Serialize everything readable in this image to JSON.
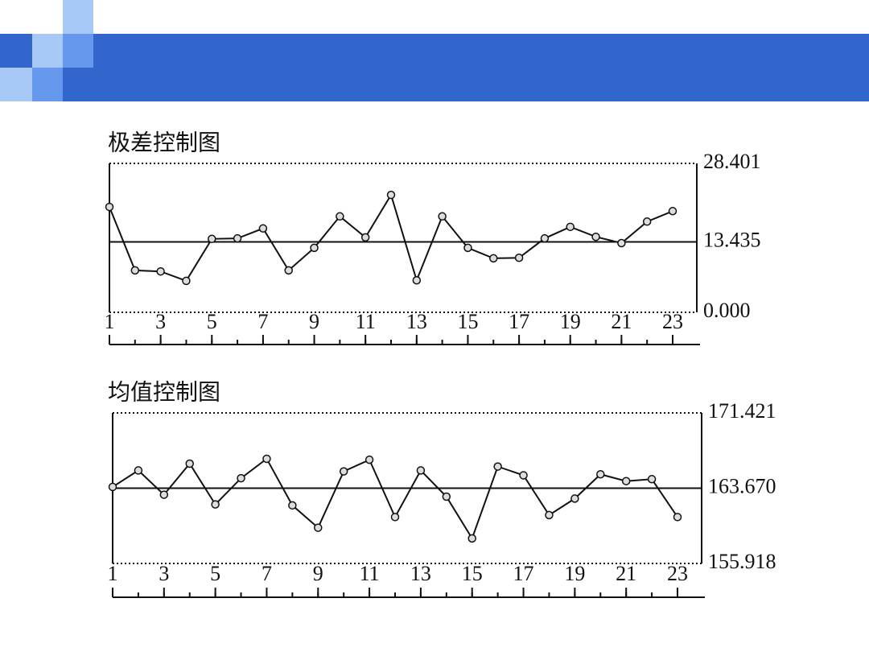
{
  "chart_data": [
    {
      "type": "line",
      "title": "极差控制图",
      "x": [
        1,
        2,
        3,
        4,
        5,
        6,
        7,
        8,
        9,
        10,
        11,
        12,
        13,
        14,
        15,
        16,
        17,
        18,
        19,
        20,
        21,
        22,
        23
      ],
      "values": [
        20.1,
        8.0,
        7.8,
        6.0,
        14.0,
        14.1,
        16.0,
        8.0,
        12.3,
        18.3,
        14.3,
        22.4,
        6.1,
        18.3,
        12.3,
        10.3,
        10.4,
        14.1,
        16.3,
        14.4,
        13.2,
        17.3,
        19.3
      ],
      "color": "#111111",
      "xlim": [
        1,
        23
      ],
      "xticks": [
        1,
        3,
        5,
        7,
        9,
        11,
        13,
        15,
        17,
        19,
        21,
        23
      ],
      "ylim": [
        0,
        28.401
      ],
      "yticks": [
        {
          "value": 0,
          "label": "0.000"
        },
        13.435,
        28.401
      ]
    },
    {
      "type": "line",
      "title": "均值控制图",
      "x": [
        1,
        2,
        3,
        4,
        5,
        6,
        7,
        8,
        9,
        10,
        11,
        12,
        13,
        14,
        15,
        16,
        17,
        18,
        19,
        20,
        21,
        22,
        23
      ],
      "values": [
        163.8,
        165.5,
        163.0,
        166.2,
        162.0,
        164.7,
        166.7,
        161.9,
        159.6,
        165.4,
        166.6,
        160.7,
        165.5,
        162.8,
        158.5,
        165.9,
        165.0,
        160.9,
        162.6,
        165.1,
        164.4,
        164.6,
        160.7
      ],
      "color": "#111111",
      "xlim": [
        1,
        23
      ],
      "xticks": [
        1,
        3,
        5,
        7,
        9,
        11,
        13,
        15,
        17,
        19,
        21,
        23
      ],
      "ylim": [
        155.918,
        171.421
      ],
      "yticks": [
        155.918,
        {
          "value": 163.67,
          "label": "163.670"
        },
        171.421
      ]
    }
  ]
}
